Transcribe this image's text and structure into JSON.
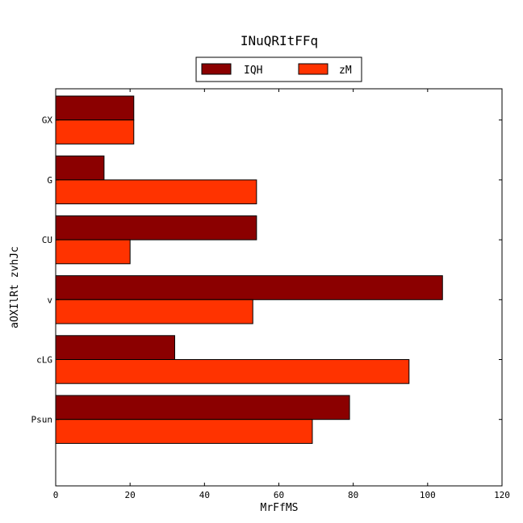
{
  "chart_data": {
    "type": "bar",
    "orientation": "horizontal",
    "title": "INuQRItFFq",
    "xlabel": "MrFfMS",
    "ylabel": "aOXIlRt zvhJc",
    "xlim": [
      0,
      120
    ],
    "xticks": [
      0,
      20,
      40,
      60,
      80,
      100,
      120
    ],
    "grid": false,
    "legend": "top-center",
    "categories": [
      "GX",
      "G",
      "CU",
      "v",
      "cLG",
      "Psun"
    ],
    "series": [
      {
        "name": "IQH",
        "color": "#8b0000",
        "values": [
          21,
          13,
          54,
          104,
          32,
          79
        ]
      },
      {
        "name": "zM",
        "color": "#ff3300",
        "values": [
          21,
          54,
          20,
          53,
          95,
          69
        ]
      }
    ]
  }
}
